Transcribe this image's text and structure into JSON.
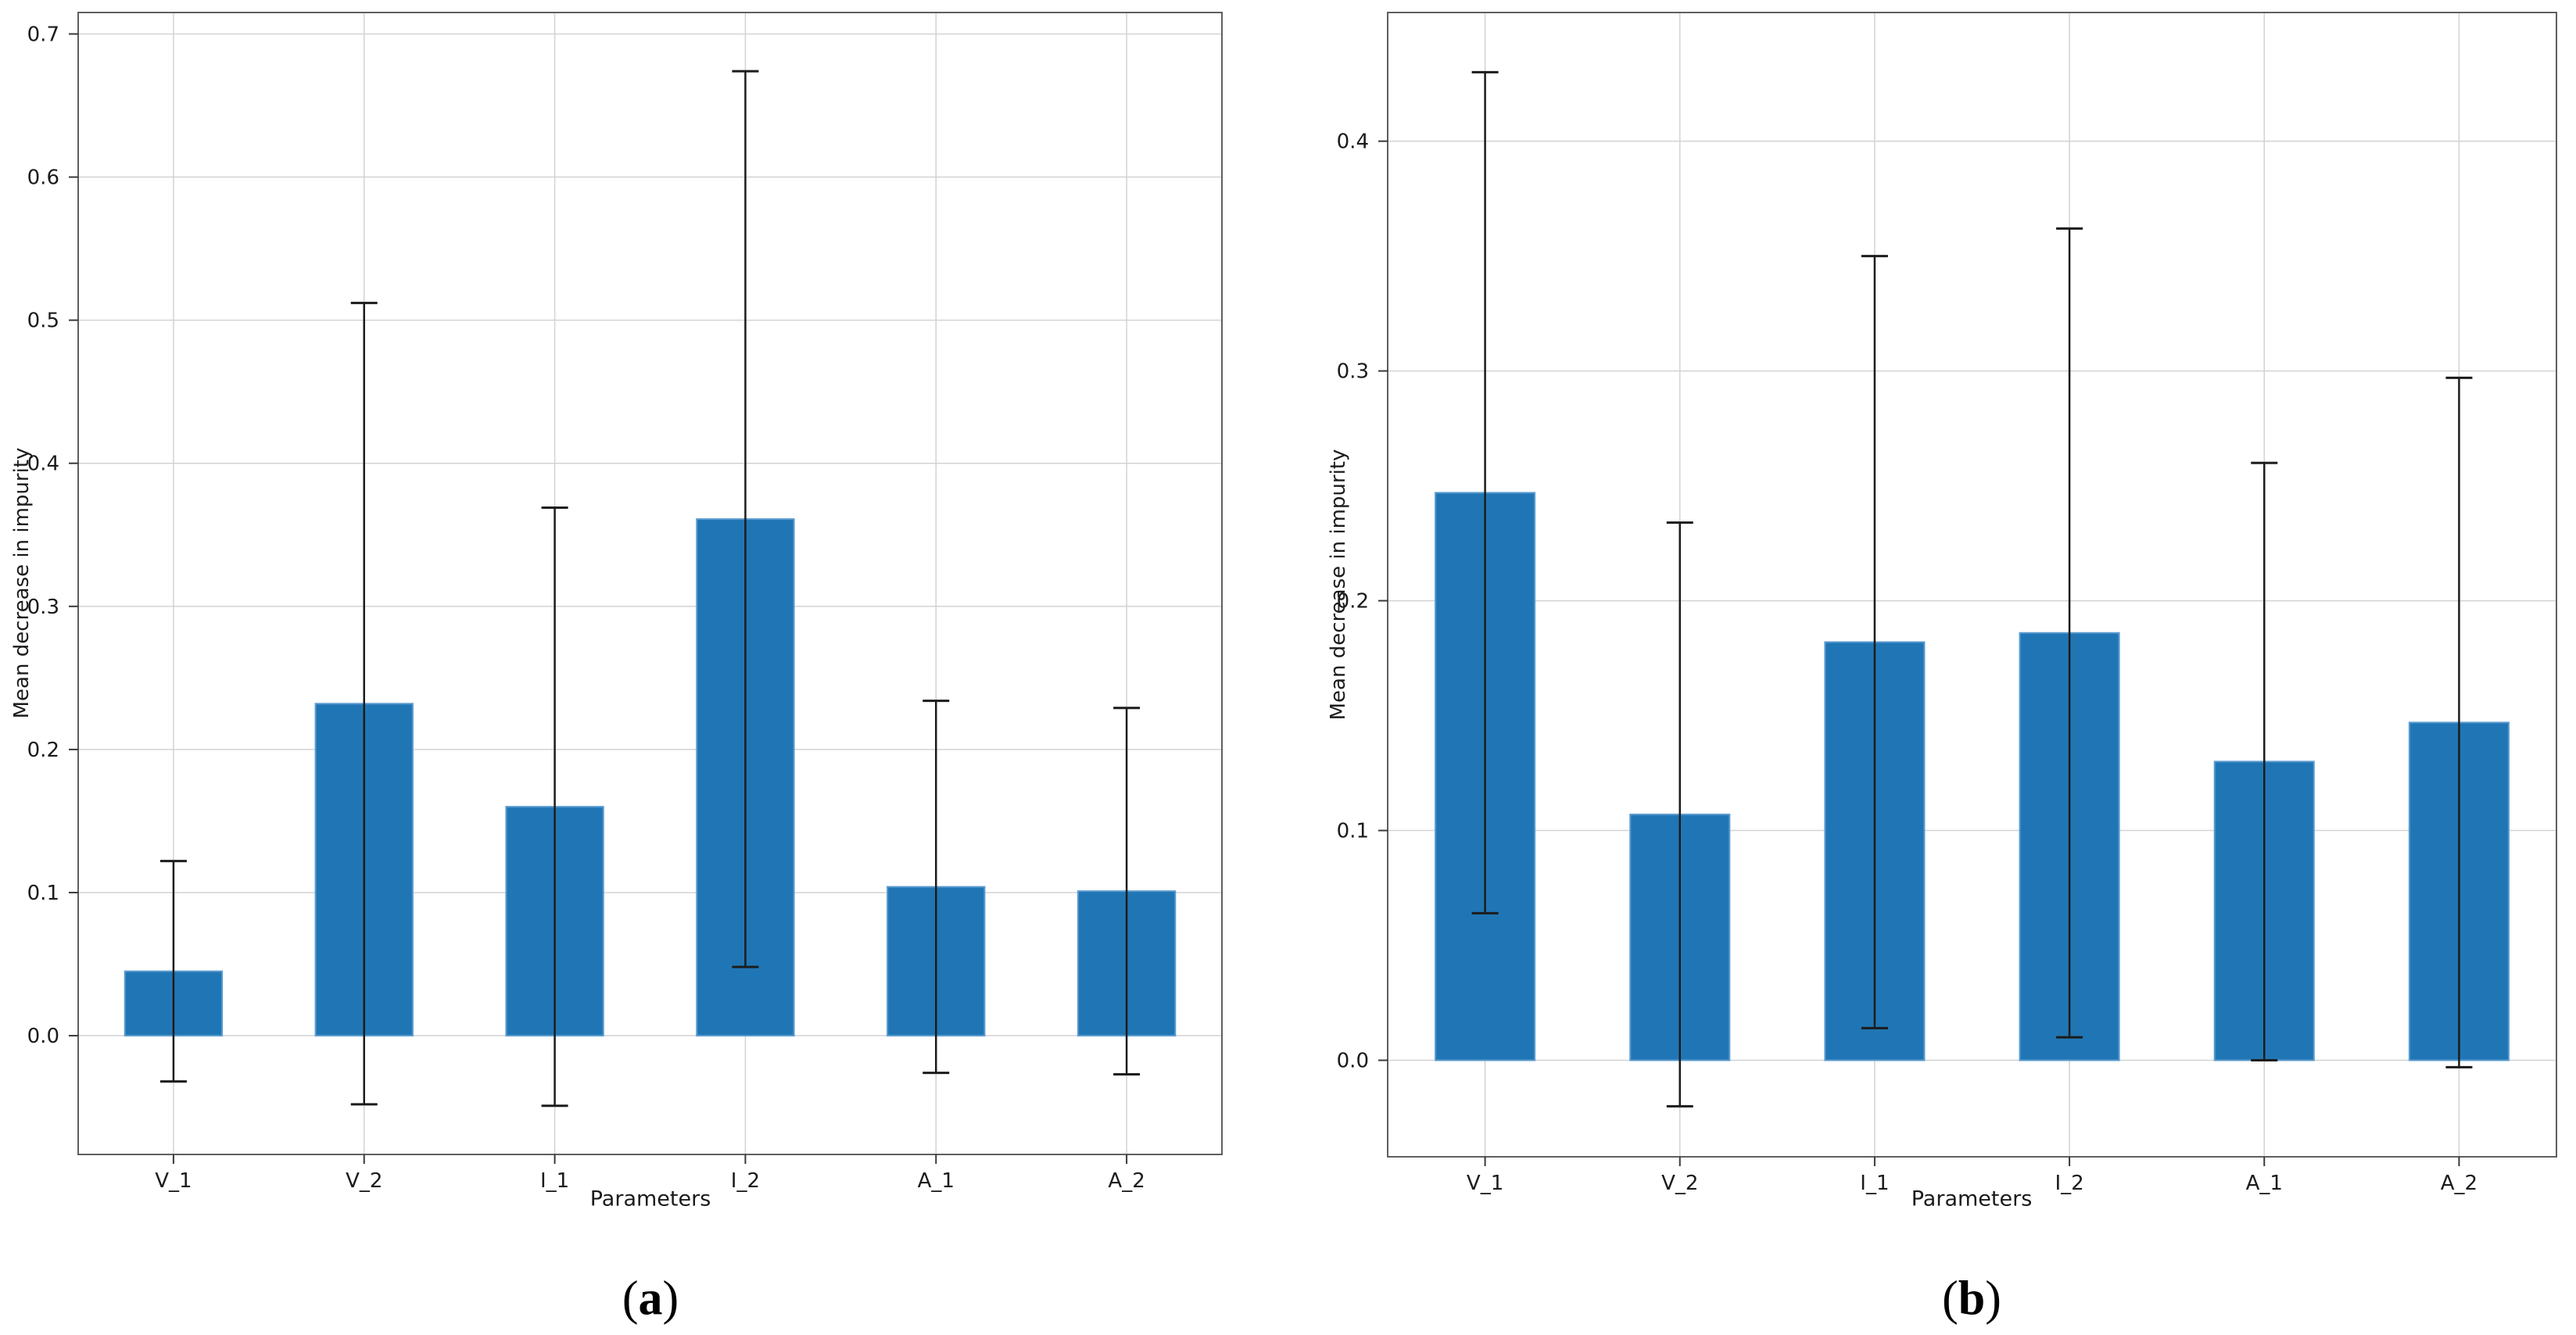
{
  "figure": {
    "background_color": "#ffffff",
    "bar_color": "#2076b4",
    "bar_edge_color": "#5b9bd0",
    "error_color": "#1c1c1c",
    "grid_color": "#d3d3d3",
    "spine_color": "#5f5f5f",
    "tick_color": "#3a3a3a",
    "text_color": "#1b1b1b"
  },
  "chart_data": [
    {
      "id": "a",
      "type": "bar",
      "caption": "(a)",
      "caption_open": "(",
      "caption_letter": "a",
      "caption_close": ")",
      "xlabel": "Parameters",
      "ylabel": "Mean decrease in impurity",
      "categories": [
        "V_1",
        "V_2",
        "I_1",
        "I_2",
        "A_1",
        "A_2"
      ],
      "values": [
        0.045,
        0.232,
        0.16,
        0.361,
        0.104,
        0.101
      ],
      "err_low": [
        -0.032,
        -0.048,
        -0.049,
        0.048,
        -0.026,
        -0.027
      ],
      "err_high": [
        0.122,
        0.512,
        0.369,
        0.674,
        0.234,
        0.229
      ],
      "yticks": [
        0.0,
        0.1,
        0.2,
        0.3,
        0.4,
        0.5,
        0.6,
        0.7
      ],
      "ytick_labels": [
        "0.0",
        "0.1",
        "0.2",
        "0.3",
        "0.4",
        "0.5",
        "0.6",
        "0.7"
      ],
      "ylim": [
        -0.083,
        0.715
      ],
      "grid": "both",
      "legend": "none",
      "bar_rel_width": 0.51
    },
    {
      "id": "b",
      "type": "bar",
      "caption": "(b)",
      "caption_open": "(",
      "caption_letter": "b",
      "caption_close": ")",
      "xlabel": "Parameters",
      "ylabel": "Mean decrease in impurity",
      "categories": [
        "V_1",
        "V_2",
        "I_1",
        "I_2",
        "A_1",
        "A_2"
      ],
      "values": [
        0.247,
        0.107,
        0.182,
        0.186,
        0.13,
        0.147
      ],
      "err_low": [
        0.064,
        -0.02,
        0.014,
        0.01,
        0.0,
        -0.003
      ],
      "err_high": [
        0.43,
        0.234,
        0.35,
        0.362,
        0.26,
        0.297
      ],
      "yticks": [
        0.0,
        0.1,
        0.2,
        0.3,
        0.4
      ],
      "ytick_labels": [
        "0.0",
        "0.1",
        "0.2",
        "0.3",
        "0.4"
      ],
      "ylim": [
        -0.042,
        0.456
      ],
      "grid": "both",
      "legend": "none",
      "bar_rel_width": 0.51
    }
  ]
}
